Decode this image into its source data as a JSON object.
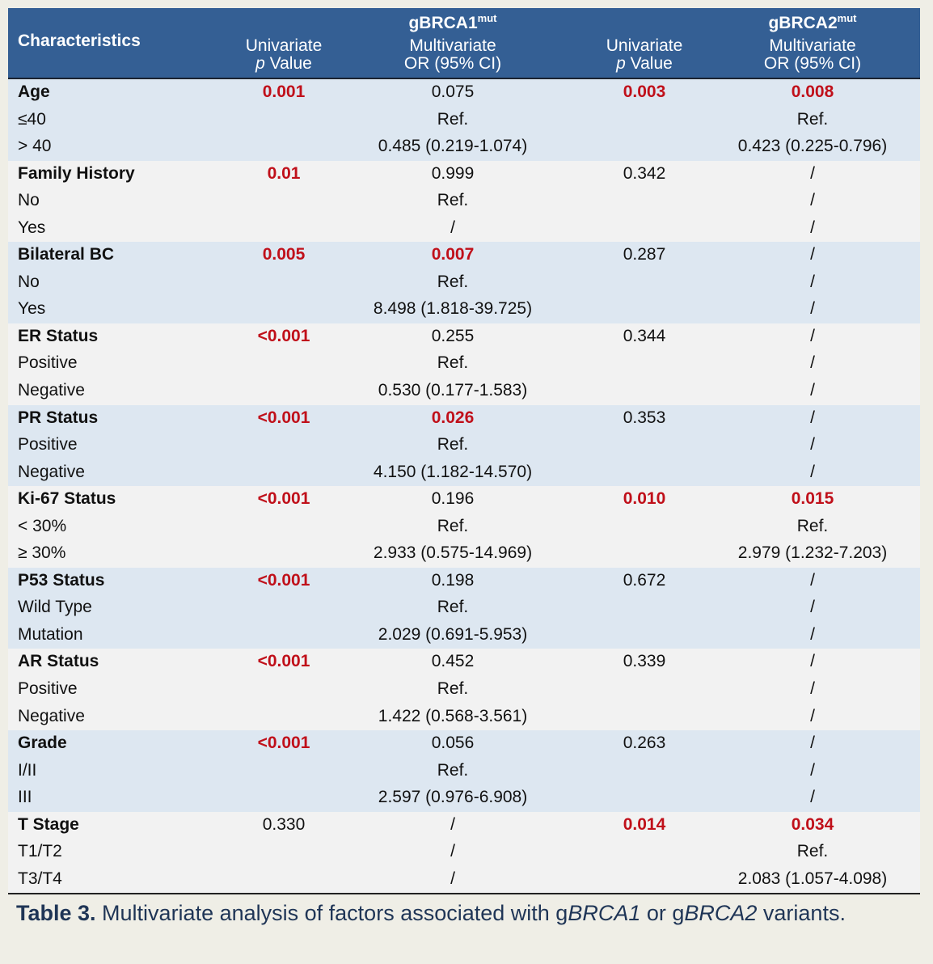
{
  "header": {
    "characteristics": "Characteristics",
    "groups": [
      {
        "name": "gBRCA1",
        "sup": "mut"
      },
      {
        "name": "gBRCA2",
        "sup": "mut"
      }
    ],
    "subheaders": [
      {
        "line1": "Univariate",
        "line2_italic": "p",
        "line2": " Value"
      },
      {
        "line1": "Multivariate",
        "line2_italic": "",
        "line2": "OR (95% CI)"
      },
      {
        "line1": "Univariate",
        "line2_italic": "p",
        "line2": " Value"
      },
      {
        "line1": "Multivariate",
        "line2_italic": "",
        "line2": "OR (95% CI)"
      }
    ]
  },
  "colors": {
    "header_bg": "#345f94",
    "significant": "#c0101a",
    "shade_row": "#dde7f1",
    "plain_row": "#f2f2f2",
    "caption": "#1f3556"
  },
  "rows": [
    {
      "label": "Age",
      "bold": true,
      "shade": true,
      "cells": [
        "0.001",
        "0.075",
        "0.003",
        "0.008"
      ],
      "red": [
        1,
        0,
        1,
        1
      ]
    },
    {
      "label": "≤40",
      "shade": true,
      "cells": [
        "",
        "Ref.",
        "",
        "Ref."
      ]
    },
    {
      "label": " > 40",
      "shade": true,
      "cells": [
        "",
        "0.485 (0.219-1.074)",
        "",
        "0.423 (0.225-0.796)"
      ]
    },
    {
      "label": "Family History",
      "bold": true,
      "cells": [
        "0.01",
        "0.999",
        "0.342",
        "/"
      ],
      "red": [
        1,
        0,
        0,
        0
      ]
    },
    {
      "label": "No",
      "cells": [
        "",
        "Ref.",
        "",
        "/"
      ]
    },
    {
      "label": "Yes",
      "cells": [
        "",
        "/",
        "",
        "/"
      ]
    },
    {
      "label": "Bilateral BC",
      "bold": true,
      "shade": true,
      "cells": [
        "0.005",
        "0.007",
        "0.287",
        "/"
      ],
      "red": [
        1,
        1,
        0,
        0
      ]
    },
    {
      "label": "No",
      "shade": true,
      "cells": [
        "",
        "Ref.",
        "",
        "/"
      ]
    },
    {
      "label": "Yes",
      "shade": true,
      "cells": [
        "",
        "8.498 (1.818-39.725)",
        "",
        "/"
      ]
    },
    {
      "label": "ER Status",
      "bold": true,
      "cells": [
        "<0.001",
        "0.255",
        "0.344",
        "/"
      ],
      "red": [
        1,
        0,
        0,
        0
      ]
    },
    {
      "label": "Positive",
      "cells": [
        "",
        "Ref.",
        "",
        "/"
      ]
    },
    {
      "label": "Negative",
      "cells": [
        "",
        "0.530 (0.177-1.583)",
        "",
        "/"
      ]
    },
    {
      "label": "PR Status",
      "bold": true,
      "shade": true,
      "cells": [
        "<0.001",
        "0.026",
        "0.353",
        "/"
      ],
      "red": [
        1,
        1,
        0,
        0
      ]
    },
    {
      "label": "Positive",
      "shade": true,
      "cells": [
        "",
        "Ref.",
        "",
        "/"
      ]
    },
    {
      "label": "Negative",
      "shade": true,
      "cells": [
        "",
        "4.150 (1.182-14.570)",
        "",
        "/"
      ]
    },
    {
      "label": "Ki-67 Status",
      "bold": true,
      "cells": [
        "<0.001",
        "0.196",
        "0.010",
        "0.015"
      ],
      "red": [
        1,
        0,
        1,
        1
      ]
    },
    {
      "label": "< 30%",
      "cells": [
        "",
        "Ref.",
        "",
        "Ref."
      ]
    },
    {
      "label": "≥ 30%",
      "cells": [
        "",
        "2.933 (0.575-14.969)",
        "",
        "2.979 (1.232-7.203)"
      ]
    },
    {
      "label": "P53 Status",
      "bold": true,
      "shade": true,
      "cells": [
        "<0.001",
        "0.198",
        "0.672",
        "/"
      ],
      "red": [
        1,
        0,
        0,
        0
      ]
    },
    {
      "label": "Wild Type",
      "shade": true,
      "cells": [
        "",
        "Ref.",
        "",
        "/"
      ]
    },
    {
      "label": "Mutation",
      "shade": true,
      "cells": [
        "",
        "2.029 (0.691-5.953)",
        "",
        "/"
      ]
    },
    {
      "label": "AR Status",
      "bold": true,
      "cells": [
        "<0.001",
        "0.452",
        "0.339",
        "/"
      ],
      "red": [
        1,
        0,
        0,
        0
      ]
    },
    {
      "label": "Positive",
      "cells": [
        "",
        "Ref.",
        "",
        "/"
      ]
    },
    {
      "label": "Negative",
      "cells": [
        "",
        "1.422 (0.568-3.561)",
        "",
        "/"
      ]
    },
    {
      "label": "Grade",
      "bold": true,
      "shade": true,
      "cells": [
        "<0.001",
        "0.056",
        "0.263",
        "/"
      ],
      "red": [
        1,
        0,
        0,
        0
      ]
    },
    {
      "label": "I/II",
      "shade": true,
      "cells": [
        "",
        "Ref.",
        "",
        "/"
      ]
    },
    {
      "label": "III",
      "shade": true,
      "cells": [
        "",
        "2.597 (0.976-6.908)",
        "",
        "/"
      ]
    },
    {
      "label": "T Stage",
      "bold": true,
      "cells": [
        "0.330",
        "/",
        "0.014",
        "0.034"
      ],
      "red": [
        0,
        0,
        1,
        1
      ]
    },
    {
      "label": "T1/T2",
      "cells": [
        "",
        "/",
        "",
        "Ref."
      ]
    },
    {
      "label": "T3/T4",
      "cells": [
        "",
        "/",
        "",
        "2.083 (1.057-4.098)"
      ]
    }
  ],
  "caption": {
    "label": "Table 3.",
    "text1": " Multivariate analysis of factors associated with g",
    "gene1": "BRCA1",
    "text2": " or g",
    "gene2": "BRCA2",
    "text3": " variants."
  }
}
